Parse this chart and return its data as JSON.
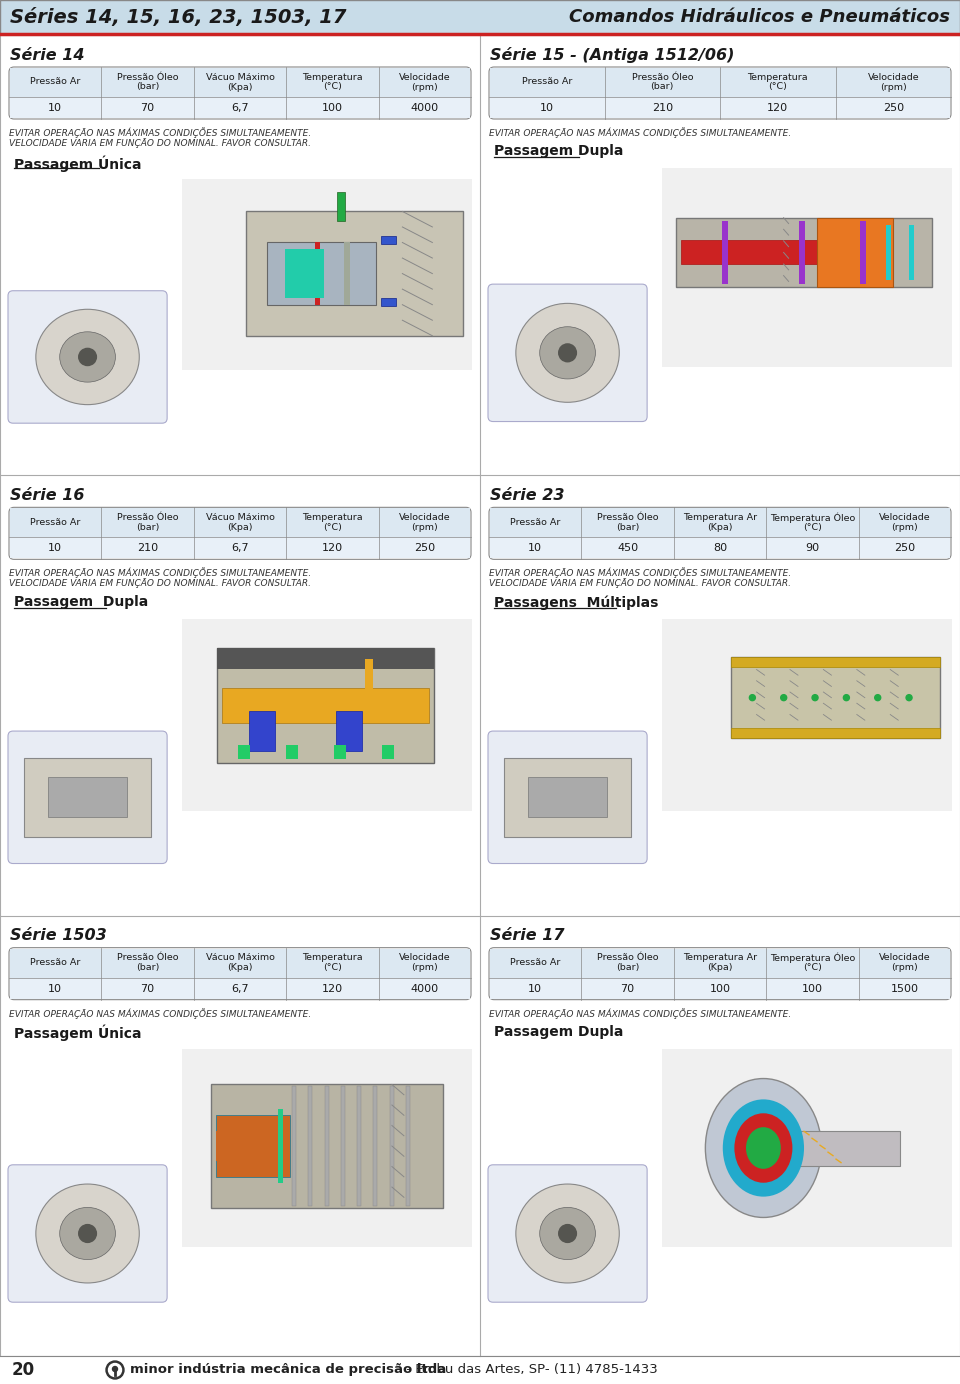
{
  "page_bg": "#ffffff",
  "header_bg": "#c8dce8",
  "header_text": "Séries 14, 15, 16, 23, 1503, 17",
  "header_right_text": "Comandos Hidráulicos e Pneumáticos",
  "table_header_bg": "#dce8f2",
  "table_value_bg": "#e8f0f8",
  "table_border": "#999999",
  "section_title_color": "#1a1a1a",
  "text_color": "#222222",
  "warning_color": "#333333",
  "footer_text_bold": "minor indústria mecânica de precisão ltda",
  "footer_text_normal": " - Embu das Artes, SP- (11) 4785-1433",
  "page_number": "20",
  "red_line_color": "#cc2222",
  "divider_color": "#aaaaaa",
  "sections": [
    {
      "title": "Série 14",
      "col": 0,
      "row": 0,
      "table_headers": [
        "Pressão Ar",
        "Pressão Óleo\n(bar)",
        "Vácuo Máximo\n(Kpa)",
        "Temperatura\n(°C)",
        "Velocidade\n(rpm)"
      ],
      "table_values": [
        "10",
        "70",
        "6,7",
        "100",
        "4000"
      ],
      "warning": "EVITAR OPERAÇÃO NAS MÁXIMAS CONDIÇÕES SIMULTANEAMENTE.\nVELOCIDADE VARIA EM FUNÇÃO DO NOMINAL. FAVOR CONSULTAR.",
      "passage": "Passagem Única",
      "passage_underline": true,
      "main_img_colors": [
        "#c8c4b4",
        "#a0a898",
        "#22aa44",
        "#cc2222",
        "#9933cc",
        "#22aacc"
      ],
      "small_img_colors": [
        "#d0ccc0",
        "#c8c0a8"
      ],
      "img_type": "rotary_single"
    },
    {
      "title": "Série 15 - (Antiga 1512/06)",
      "col": 1,
      "row": 0,
      "table_headers": [
        "Pressão Ar",
        "Pressão Óleo\n(bar)",
        "Temperatura\n(°C)",
        "Velocidade\n(rpm)"
      ],
      "table_values": [
        "10",
        "210",
        "120",
        "250"
      ],
      "warning": "EVITAR OPERAÇÃO NAS MÁXIMAS CONDIÇÕES SIMULTANEAMENTE.",
      "passage": "Passagem Dupla",
      "passage_underline": true,
      "main_img_colors": [
        "#b8b4a8",
        "#cc2222",
        "#e87722",
        "#9933cc"
      ],
      "small_img_colors": [
        "#d0ccc0",
        "#c8c0a8"
      ],
      "img_type": "rotary_double"
    },
    {
      "title": "Série 16",
      "col": 0,
      "row": 1,
      "table_headers": [
        "Pressão Ar",
        "Pressão Óleo\n(bar)",
        "Vácuo Máximo\n(Kpa)",
        "Temperatura\n(°C)",
        "Velocidade\n(rpm)"
      ],
      "table_values": [
        "10",
        "210",
        "6,7",
        "120",
        "250"
      ],
      "warning": "EVITAR OPERAÇÃO NAS MÁXIMAS CONDIÇÕES SIMULTANEAMENTE.\nVELOCIDADE VARIA EM FUNÇÃO DO NOMINAL. FAVOR CONSULTAR.",
      "passage": "Passagem  Dupla",
      "passage_underline": true,
      "main_img_colors": [
        "#c0bca8",
        "#e8a822",
        "#3344cc",
        "#cc2222"
      ],
      "small_img_colors": [
        "#d0ccc0",
        "#c8c0a8"
      ],
      "img_type": "linear_double"
    },
    {
      "title": "Série 23",
      "col": 1,
      "row": 1,
      "table_headers": [
        "Pressão Ar",
        "Pressão Óleo\n(bar)",
        "Temperatura Ar\n(Kpa)",
        "Temperatura Óleo\n(°C)",
        "Velocidade\n(rpm)"
      ],
      "table_values": [
        "10",
        "450",
        "80",
        "90",
        "250"
      ],
      "warning": "EVITAR OPERAÇÃO NAS MÁXIMAS CONDIÇÕES SIMULTANEAMENTE.\nVELOCIDADE VARIA EM FUNÇÃO DO NOMINAL. FAVOR CONSULTAR.",
      "passage": "Passagens  Múltiplas",
      "passage_underline": true,
      "main_img_colors": [
        "#c8c4a8",
        "#d4aa22",
        "#888877"
      ],
      "small_img_colors": [
        "#d0ccc0",
        "#c8c0a8"
      ],
      "img_type": "multi_pass"
    },
    {
      "title": "Série 1503",
      "col": 0,
      "row": 2,
      "table_headers": [
        "Pressão Ar",
        "Pressão Óleo\n(bar)",
        "Vácuo Máximo\n(Kpa)",
        "Temperatura\n(°C)",
        "Velocidade\n(rpm)"
      ],
      "table_values": [
        "10",
        "70",
        "6,7",
        "120",
        "4000"
      ],
      "warning": "EVITAR OPERAÇÃO NAS MÁXIMAS CONDIÇÕES SIMULTANEAMENTE.",
      "passage": "Passagem Única",
      "passage_underline": false,
      "main_img_colors": [
        "#b8b4a4",
        "#22aacc",
        "#cc6622",
        "#22cc88"
      ],
      "small_img_colors": [
        "#d0ccc0",
        "#c8c0a8"
      ],
      "img_type": "rotary_single2"
    },
    {
      "title": "Série 17",
      "col": 1,
      "row": 2,
      "table_headers": [
        "Pressão Ar",
        "Pressão Óleo\n(bar)",
        "Temperatura Ar\n(Kpa)",
        "Temperatura Óleo\n(°C)",
        "Velocidade\n(rpm)"
      ],
      "table_values": [
        "10",
        "70",
        "100",
        "100",
        "1500"
      ],
      "warning": "EVITAR OPERAÇÃO NAS MÁXIMAS CONDIÇÕES SIMULTANEAMENTE.",
      "passage": "Passagem Dupla ",
      "passage_underline": false,
      "main_img_colors": [
        "#a8b4c0",
        "#22aacc",
        "#cc2222",
        "#22aa44",
        "#e8aa22"
      ],
      "small_img_colors": [
        "#d0ccc0",
        "#c0c8d0"
      ],
      "img_type": "flange_double"
    }
  ]
}
